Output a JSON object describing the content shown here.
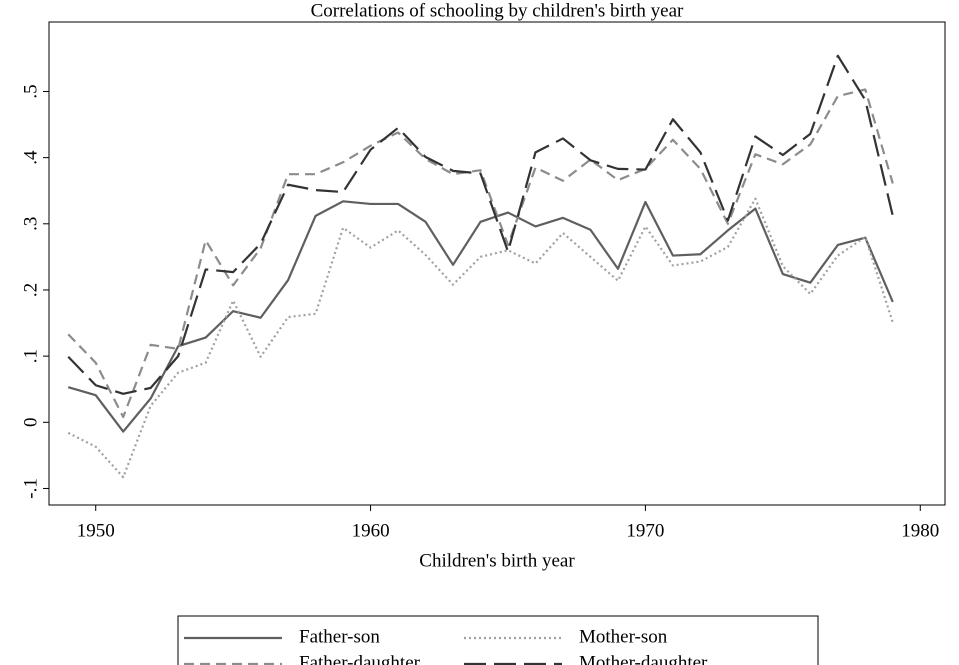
{
  "chart_data": {
    "type": "line",
    "title": "Correlations of schooling by children's birth year",
    "x_label": "Children's birth year",
    "x": [
      1949,
      1950,
      1951,
      1952,
      1953,
      1954,
      1955,
      1956,
      1957,
      1958,
      1959,
      1960,
      1961,
      1962,
      1963,
      1964,
      1965,
      1966,
      1967,
      1968,
      1969,
      1970,
      1971,
      1972,
      1973,
      1974,
      1975,
      1976,
      1977,
      1978,
      1979
    ],
    "series": [
      {
        "name": "Father-son",
        "color": "#5f5f5f",
        "dash": "solid",
        "values": [
          0.053,
          0.041,
          -0.014,
          0.036,
          0.115,
          0.128,
          0.168,
          0.158,
          0.215,
          0.312,
          0.334,
          0.33,
          0.33,
          0.303,
          0.238,
          0.303,
          0.317,
          0.296,
          0.309,
          0.291,
          0.232,
          0.333,
          0.252,
          0.254,
          0.29,
          0.323,
          0.224,
          0.211,
          0.268,
          0.279,
          0.182
        ]
      },
      {
        "name": "Mother-son",
        "color": "#a0a0a0",
        "dash": "dotted",
        "values": [
          -0.016,
          -0.037,
          -0.083,
          0.025,
          0.075,
          0.09,
          0.184,
          0.099,
          0.159,
          0.164,
          0.294,
          0.264,
          0.29,
          0.253,
          0.208,
          0.25,
          0.26,
          0.24,
          0.286,
          0.25,
          0.214,
          0.296,
          0.237,
          0.243,
          0.265,
          0.338,
          0.236,
          0.194,
          0.252,
          0.28,
          0.151
        ]
      },
      {
        "name": "Father-daughter",
        "color": "#8c8c8c",
        "dash": "dashed",
        "values": [
          0.133,
          0.09,
          0.008,
          0.117,
          0.111,
          0.275,
          0.207,
          0.263,
          0.375,
          0.375,
          0.393,
          0.418,
          0.438,
          0.398,
          0.375,
          0.381,
          0.268,
          0.385,
          0.365,
          0.397,
          0.366,
          0.383,
          0.427,
          0.383,
          0.3,
          0.405,
          0.39,
          0.42,
          0.493,
          0.503,
          0.361
        ]
      },
      {
        "name": "Mother-daughter",
        "color": "#333333",
        "dash": "longdash",
        "values": [
          0.099,
          0.056,
          0.043,
          0.052,
          0.1,
          0.231,
          0.227,
          0.27,
          0.359,
          0.351,
          0.348,
          0.412,
          0.445,
          0.401,
          0.38,
          0.376,
          0.258,
          0.408,
          0.429,
          0.396,
          0.383,
          0.382,
          0.458,
          0.408,
          0.305,
          0.432,
          0.404,
          0.436,
          0.554,
          0.487,
          0.312
        ]
      }
    ],
    "xlim": [
      1948.3,
      1980.9
    ],
    "xticks": [
      1950,
      1960,
      1970,
      1980
    ],
    "ylim": [
      -0.125,
      0.605
    ],
    "yticks": [
      {
        "value": -0.1,
        "label": "-.1"
      },
      0,
      {
        "value": 0.1,
        "label": ".1"
      },
      {
        "value": 0.2,
        "label": ".2"
      },
      {
        "value": 0.3,
        "label": ".3"
      },
      {
        "value": 0.4,
        "label": ".4"
      },
      {
        "value": 0.5,
        "label": ".5"
      }
    ],
    "grid": false,
    "legend_position": "bottom"
  }
}
